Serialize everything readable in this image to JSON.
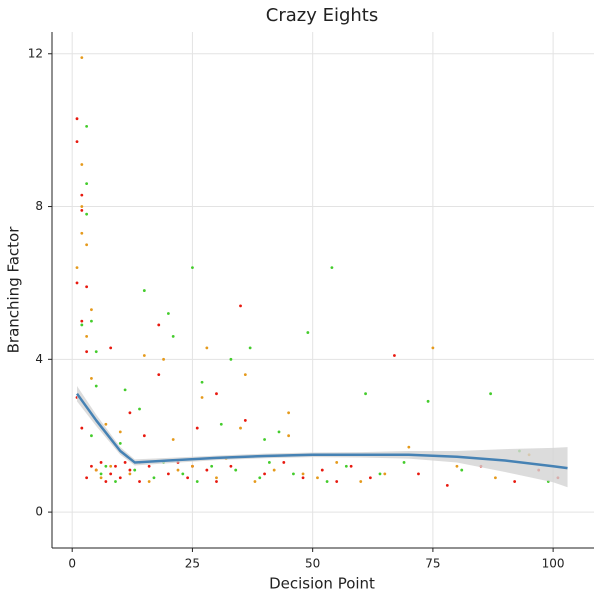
{
  "chart_data": {
    "type": "scatter",
    "title": "Crazy Eights",
    "x_label": "Decision Point",
    "y_label": "Branching Factor",
    "xlim": [
      -4.2,
      108.5
    ],
    "ylim": [
      -0.94,
      12.57
    ],
    "xticks": [
      0,
      25,
      50,
      75,
      100
    ],
    "yticks": [
      0,
      4,
      8,
      12
    ],
    "grid": true,
    "series": [
      {
        "color": "#e8190f",
        "x": [
          1,
          1,
          1,
          2,
          2,
          3,
          1,
          2,
          4,
          3,
          5,
          6,
          7,
          8,
          9,
          10,
          11,
          12,
          14,
          15,
          16,
          18,
          20,
          22,
          24,
          26,
          28,
          30,
          33,
          36,
          40,
          44,
          48,
          52,
          55,
          58,
          62,
          67,
          72,
          78,
          85,
          92,
          97,
          101,
          2,
          3,
          8,
          12,
          18,
          25,
          30,
          35
        ],
        "values": [
          10.3,
          9.7,
          6.0,
          8.3,
          5.0,
          4.2,
          3.0,
          2.2,
          1.2,
          0.9,
          1.1,
          1.3,
          0.8,
          1.0,
          1.2,
          0.9,
          1.3,
          1.1,
          0.8,
          2.0,
          1.2,
          3.6,
          1.0,
          1.3,
          0.9,
          2.2,
          1.1,
          0.8,
          1.2,
          2.4,
          1.0,
          1.3,
          0.9,
          1.1,
          0.8,
          1.2,
          0.9,
          4.1,
          1.0,
          0.7,
          1.2,
          0.8,
          1.1,
          0.9,
          7.9,
          5.9,
          4.3,
          2.6,
          4.9,
          1.2,
          3.1,
          5.4
        ]
      },
      {
        "color": "#e59a1c",
        "x": [
          2,
          2,
          3,
          1,
          4,
          2,
          3,
          5,
          6,
          8,
          10,
          12,
          14,
          16,
          19,
          22,
          25,
          27,
          30,
          32,
          35,
          38,
          42,
          45,
          48,
          51,
          55,
          60,
          65,
          70,
          75,
          80,
          88,
          95,
          2,
          4,
          7,
          15,
          21,
          28,
          36,
          45
        ],
        "values": [
          11.9,
          9.1,
          7.0,
          6.4,
          5.3,
          8.0,
          4.6,
          1.1,
          0.9,
          1.2,
          2.1,
          1.0,
          1.3,
          0.8,
          4.0,
          1.1,
          1.2,
          3.0,
          0.9,
          1.4,
          2.2,
          0.8,
          1.1,
          2.6,
          1.0,
          0.9,
          1.3,
          0.8,
          1.0,
          1.7,
          4.3,
          1.2,
          0.9,
          1.5,
          7.3,
          3.5,
          2.3,
          4.1,
          1.9,
          4.3,
          3.6,
          2.0
        ]
      },
      {
        "color": "#44cc2c",
        "x": [
          3,
          3,
          4,
          2,
          5,
          4,
          6,
          7,
          9,
          11,
          13,
          15,
          17,
          19,
          21,
          23,
          25,
          26,
          29,
          31,
          34,
          37,
          39,
          41,
          43,
          46,
          49,
          53,
          54,
          57,
          61,
          64,
          69,
          74,
          81,
          87,
          93,
          99,
          3,
          5,
          10,
          14,
          20,
          27,
          33,
          40
        ],
        "values": [
          10.1,
          8.6,
          5.0,
          4.9,
          3.3,
          2.0,
          1.0,
          1.2,
          0.8,
          3.2,
          1.1,
          5.8,
          0.9,
          1.3,
          4.6,
          1.0,
          6.4,
          0.8,
          1.2,
          2.3,
          1.1,
          4.3,
          0.9,
          1.3,
          2.1,
          1.0,
          4.7,
          0.8,
          6.4,
          1.2,
          3.1,
          1.0,
          1.3,
          2.9,
          1.1,
          3.1,
          1.6,
          0.8,
          7.8,
          4.2,
          1.8,
          2.7,
          5.2,
          3.4,
          4.0,
          1.9
        ]
      }
    ],
    "smooth": {
      "color": "#4682b4",
      "band_color": "#d3d3d3",
      "x": [
        1,
        5,
        10,
        13,
        20,
        30,
        40,
        50,
        60,
        70,
        80,
        90,
        100,
        103
      ],
      "values": [
        3.1,
        2.4,
        1.6,
        1.3,
        1.35,
        1.42,
        1.47,
        1.5,
        1.5,
        1.5,
        1.45,
        1.35,
        1.2,
        1.15
      ],
      "lower": [
        2.9,
        2.25,
        1.5,
        1.22,
        1.28,
        1.36,
        1.41,
        1.44,
        1.43,
        1.4,
        1.3,
        1.05,
        0.78,
        0.65
      ],
      "upper": [
        3.3,
        2.55,
        1.7,
        1.38,
        1.42,
        1.48,
        1.53,
        1.56,
        1.57,
        1.6,
        1.6,
        1.65,
        1.68,
        1.7
      ]
    }
  }
}
